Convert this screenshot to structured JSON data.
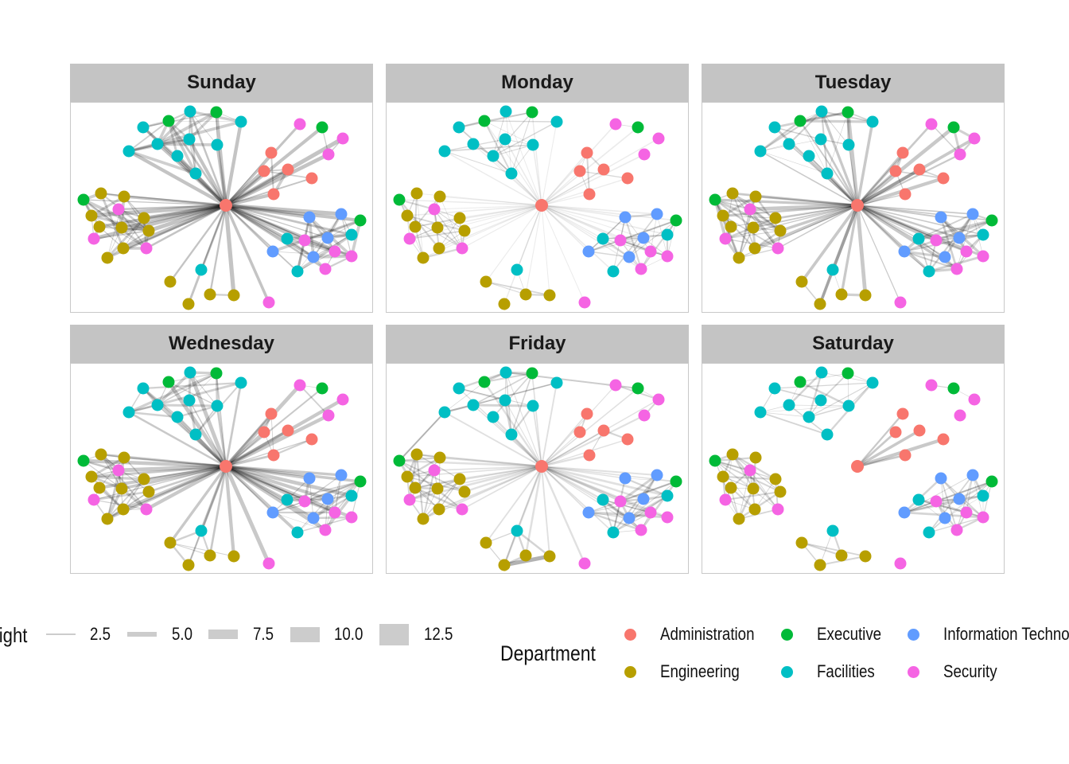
{
  "facets": [
    "Sunday",
    "Monday",
    "Tuesday",
    "Wednesday",
    "Friday",
    "Saturday"
  ],
  "departments": [
    {
      "name": "Administration",
      "color": "#F8766D"
    },
    {
      "name": "Engineering",
      "color": "#B79F00"
    },
    {
      "name": "Executive",
      "color": "#00BA38"
    },
    {
      "name": "Facilities",
      "color": "#00BFC4"
    },
    {
      "name": "Information Technology",
      "color": "#619CFF"
    },
    {
      "name": "Security",
      "color": "#F564E3"
    }
  ],
  "legend": {
    "weight_title": "Weight",
    "weight_breaks": [
      "2.5",
      "5.0",
      "7.5",
      "10.0",
      "12.5"
    ],
    "department_title": "Department"
  }
}
